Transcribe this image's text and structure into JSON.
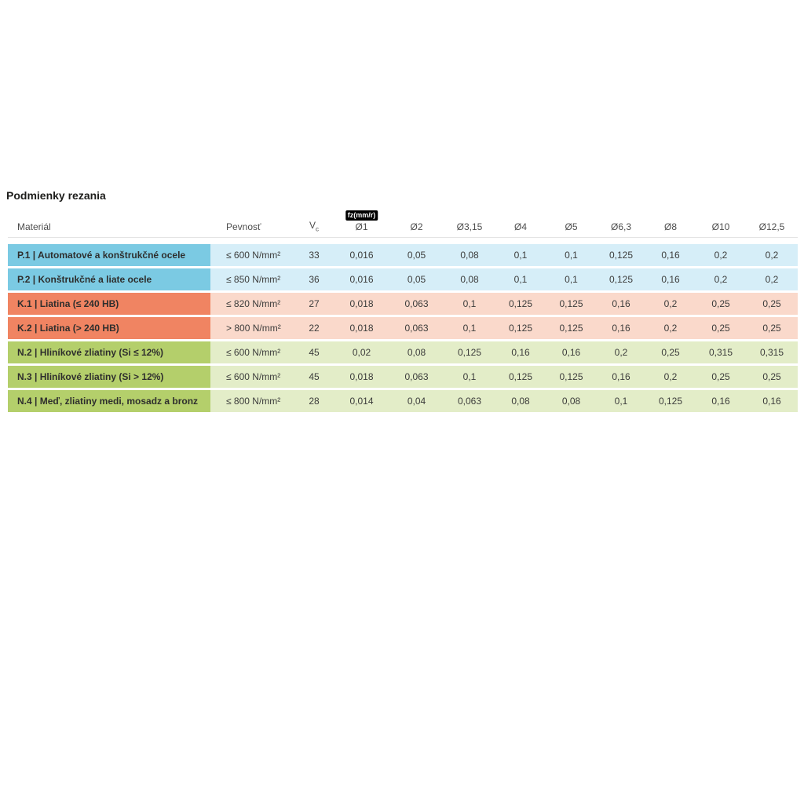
{
  "page": {
    "title": "Podmienky rezania"
  },
  "table": {
    "headers": {
      "material": "Materiál",
      "strength": "Pevnosť",
      "vc_main": "V",
      "vc_sub": "c",
      "fz_badge": "fz(mm/r)",
      "diameters": [
        "Ø1",
        "Ø2",
        "Ø3,15",
        "Ø4",
        "Ø5",
        "Ø6,3",
        "Ø8",
        "Ø10",
        "Ø12,5"
      ]
    },
    "group_colors": {
      "P": {
        "dark": "#7bcae3",
        "light": "#d6eef8"
      },
      "K": {
        "dark": "#f08462",
        "light": "#fad9cb"
      },
      "N": {
        "dark": "#b4cf6b",
        "light": "#e3edc8"
      }
    },
    "rows": [
      {
        "group": "P",
        "material": "P.1 | Automatové a konštrukčné ocele",
        "strength": "≤ 600 N/mm²",
        "vc": "33",
        "values": [
          "0,016",
          "0,05",
          "0,08",
          "0,1",
          "0,1",
          "0,125",
          "0,16",
          "0,2",
          "0,2"
        ]
      },
      {
        "group": "P",
        "material": "P.2 | Konštrukčné a liate ocele",
        "strength": "≤ 850 N/mm²",
        "vc": "36",
        "values": [
          "0,016",
          "0,05",
          "0,08",
          "0,1",
          "0,1",
          "0,125",
          "0,16",
          "0,2",
          "0,2"
        ]
      },
      {
        "group": "K",
        "material": "K.1 | Liatina (≤ 240 HB)",
        "strength": "≤ 820 N/mm²",
        "vc": "27",
        "values": [
          "0,018",
          "0,063",
          "0,1",
          "0,125",
          "0,125",
          "0,16",
          "0,2",
          "0,25",
          "0,25"
        ]
      },
      {
        "group": "K",
        "material": "K.2 | Liatina (> 240 HB)",
        "strength": "> 800 N/mm²",
        "vc": "22",
        "values": [
          "0,018",
          "0,063",
          "0,1",
          "0,125",
          "0,125",
          "0,16",
          "0,2",
          "0,25",
          "0,25"
        ]
      },
      {
        "group": "N",
        "material": "N.2 | Hliníkové zliatiny (Si ≤ 12%)",
        "strength": "≤ 600 N/mm²",
        "vc": "45",
        "values": [
          "0,02",
          "0,08",
          "0,125",
          "0,16",
          "0,16",
          "0,2",
          "0,25",
          "0,315",
          "0,315"
        ]
      },
      {
        "group": "N",
        "material": "N.3 | Hliníkové zliatiny (Si > 12%)",
        "strength": "≤ 600 N/mm²",
        "vc": "45",
        "values": [
          "0,018",
          "0,063",
          "0,1",
          "0,125",
          "0,125",
          "0,16",
          "0,2",
          "0,25",
          "0,25"
        ]
      },
      {
        "group": "N",
        "material": "N.4 | Meď, zliatiny medi, mosadz a bronz",
        "strength": "≤ 800 N/mm²",
        "vc": "28",
        "values": [
          "0,014",
          "0,04",
          "0,063",
          "0,08",
          "0,08",
          "0,1",
          "0,125",
          "0,16",
          "0,16"
        ]
      }
    ]
  }
}
